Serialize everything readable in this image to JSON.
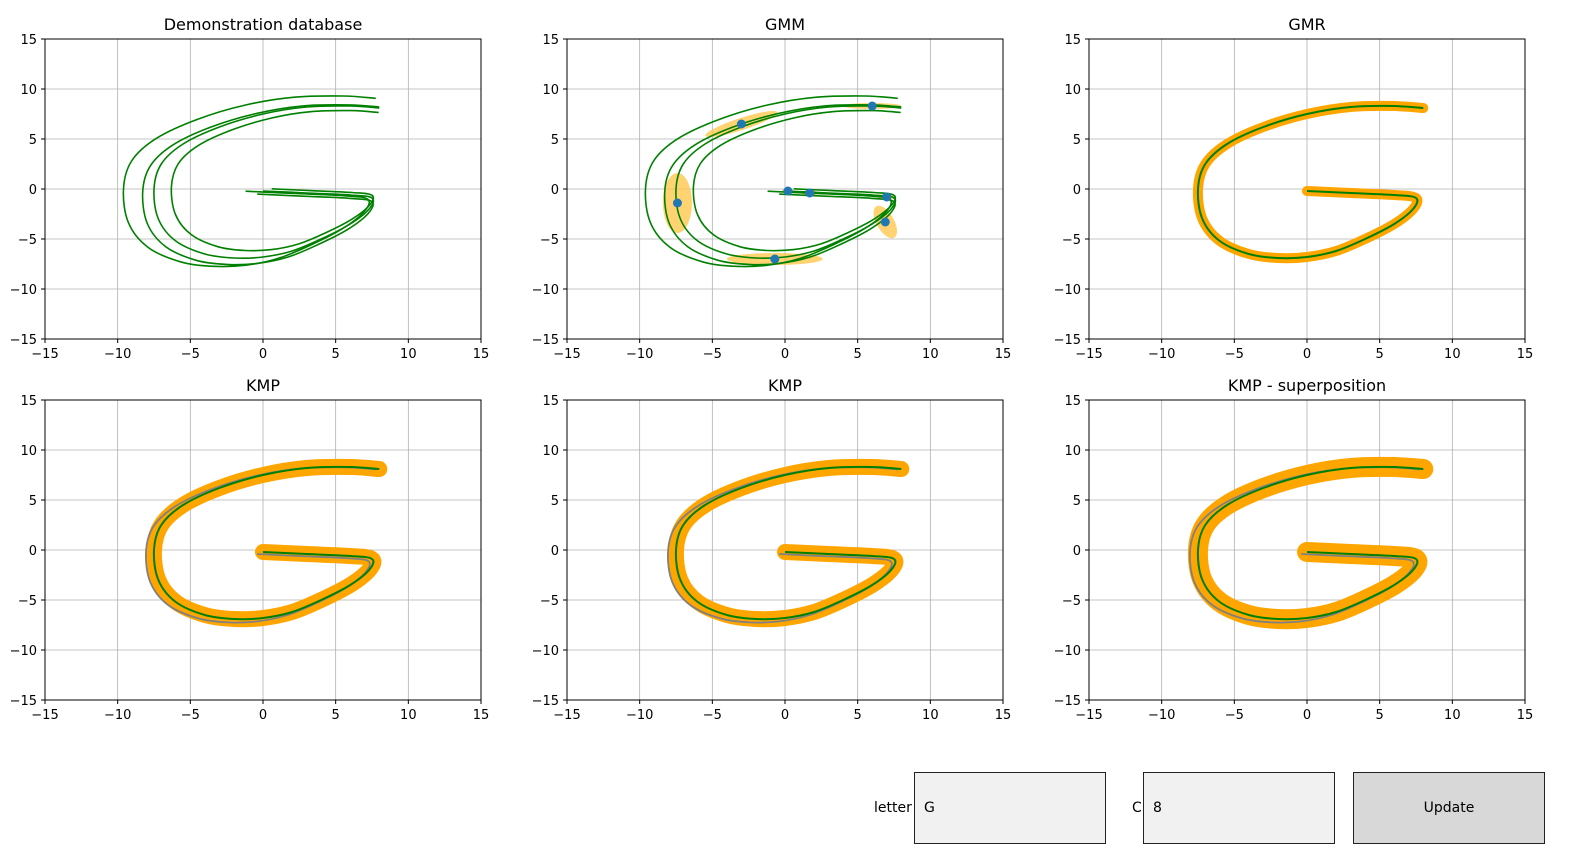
{
  "colors": {
    "trajectory": "#008000",
    "envelope": "#ffa500",
    "ellipse": "#ffc84d",
    "center": "#1f77b4",
    "reference": "#808080",
    "grid": "#b0b0b0"
  },
  "axes_ticks": [
    "−15",
    "−10",
    "−5",
    "0",
    "5",
    "10",
    "15"
  ],
  "charts": [
    {
      "title": "Demonstration database",
      "mode": "demos",
      "xlim": [
        -15,
        15
      ],
      "ylim": [
        -15,
        15
      ],
      "grid": true
    },
    {
      "title": "GMM",
      "mode": "gmm",
      "xlim": [
        -15,
        15
      ],
      "ylim": [
        -15,
        15
      ],
      "grid": true
    },
    {
      "title": "GMR",
      "mode": "gmr",
      "xlim": [
        -15,
        15
      ],
      "ylim": [
        -15,
        15
      ],
      "grid": true
    },
    {
      "title": "KMP",
      "mode": "kmp",
      "xlim": [
        -15,
        15
      ],
      "ylim": [
        -15,
        15
      ],
      "grid": true
    },
    {
      "title": "KMP",
      "mode": "kmp2",
      "xlim": [
        -15,
        15
      ],
      "ylim": [
        -15,
        15
      ],
      "grid": true
    },
    {
      "title": "KMP - superposition",
      "mode": "super",
      "xlim": [
        -15,
        15
      ],
      "ylim": [
        -15,
        15
      ],
      "grid": true
    }
  ],
  "chart_data": {
    "type": "line",
    "mean_trajectory": [
      [
        0,
        -0.2
      ],
      [
        3,
        -0.4
      ],
      [
        6,
        -0.6
      ],
      [
        7.5,
        -0.9
      ],
      [
        7.3,
        -2
      ],
      [
        6,
        -3.5
      ],
      [
        4,
        -5
      ],
      [
        2,
        -6.2
      ],
      [
        0,
        -6.8
      ],
      [
        -2,
        -6.9
      ],
      [
        -4,
        -6.5
      ],
      [
        -6,
        -5.2
      ],
      [
        -7.2,
        -3
      ],
      [
        -7.5,
        0
      ],
      [
        -7,
        2.5
      ],
      [
        -5.5,
        4.5
      ],
      [
        -3,
        6.2
      ],
      [
        0,
        7.5
      ],
      [
        3,
        8.2
      ],
      [
        6,
        8.3
      ],
      [
        8,
        8.1
      ]
    ],
    "demonstration_offsets": [
      [
        0,
        0,
        1
      ],
      [
        -1.2,
        0,
        1.12
      ],
      [
        0.6,
        0.2,
        0.92
      ],
      [
        -0.4,
        -0.3,
        1.05
      ]
    ],
    "gmm_components": [
      {
        "x": -7.4,
        "y": -1.4,
        "rx": 1.0,
        "ry": 3.0,
        "angle": 0
      },
      {
        "x": -3.0,
        "y": 6.5,
        "rx": 2.6,
        "ry": 0.6,
        "angle": 18
      },
      {
        "x": 6.0,
        "y": 8.3,
        "rx": 2.0,
        "ry": 0.3,
        "angle": 0
      },
      {
        "x": 0.2,
        "y": -0.2,
        "rx": 0.4,
        "ry": 0.3,
        "angle": 0
      },
      {
        "x": 1.7,
        "y": -0.4,
        "rx": 0.5,
        "ry": 0.3,
        "angle": 0
      },
      {
        "x": 7.0,
        "y": -0.8,
        "rx": 0.6,
        "ry": 0.3,
        "angle": 0
      },
      {
        "x": 6.9,
        "y": -3.3,
        "rx": 0.6,
        "ry": 1.8,
        "angle": 30
      },
      {
        "x": -0.7,
        "y": -7.0,
        "rx": 3.3,
        "ry": 0.6,
        "angle": 0
      }
    ]
  },
  "controls": {
    "letter_label": "letter",
    "letter_value": "G",
    "c_label": "C",
    "c_value": "8",
    "update_label": "Update"
  }
}
